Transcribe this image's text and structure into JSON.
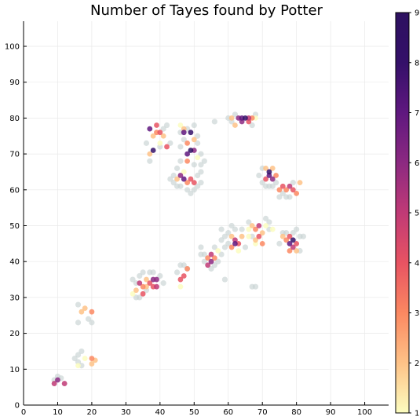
{
  "chart_data": {
    "type": "scatter",
    "title": "Number of Tayes found by Potter",
    "xlabel": "",
    "ylabel": "",
    "xlim": [
      0,
      107
    ],
    "ylim": [
      0,
      107
    ],
    "x_ticks": [
      0,
      10,
      20,
      30,
      40,
      50,
      60,
      70,
      80,
      90,
      100
    ],
    "y_ticks": [
      0,
      10,
      20,
      30,
      40,
      50,
      60,
      70,
      80,
      90,
      100
    ],
    "grid": true,
    "legend": "none",
    "colorbar": {
      "position": "right",
      "min": 1,
      "max": 9,
      "ticks": [
        1,
        2,
        3,
        4,
        5,
        6,
        7,
        8,
        9
      ],
      "colormap": [
        "#fcfdbf",
        "#fec287",
        "#fb8861",
        "#e85362",
        "#c03a76",
        "#8c2981",
        "#5f187f",
        "#341069",
        "#2d1160"
      ]
    },
    "zero_color": "#c8d3d3",
    "points": [
      {
        "x": 9,
        "y": 6,
        "v": 5
      },
      {
        "x": 10,
        "y": 7,
        "v": 6
      },
      {
        "x": 12,
        "y": 6,
        "v": 5
      },
      {
        "x": 10,
        "y": 8,
        "v": 0
      },
      {
        "x": 9,
        "y": 7,
        "v": 0
      },
      {
        "x": 11,
        "y": 7.5,
        "v": 0
      },
      {
        "x": 16,
        "y": 14,
        "v": 0
      },
      {
        "x": 17,
        "y": 15,
        "v": 0
      },
      {
        "x": 16,
        "y": 12,
        "v": 0
      },
      {
        "x": 17,
        "y": 11,
        "v": 0
      },
      {
        "x": 18,
        "y": 13,
        "v": 1
      },
      {
        "x": 16,
        "y": 11,
        "v": 1
      },
      {
        "x": 20,
        "y": 13,
        "v": 3
      },
      {
        "x": 21,
        "y": 12.5,
        "v": 2
      },
      {
        "x": 20,
        "y": 11.5,
        "v": 2
      },
      {
        "x": 15,
        "y": 13,
        "v": 0
      },
      {
        "x": 16,
        "y": 28,
        "v": 0
      },
      {
        "x": 16,
        "y": 23,
        "v": 0
      },
      {
        "x": 19,
        "y": 24,
        "v": 0
      },
      {
        "x": 20,
        "y": 23,
        "v": 0
      },
      {
        "x": 17,
        "y": 26,
        "v": 2
      },
      {
        "x": 18,
        "y": 27,
        "v": 2
      },
      {
        "x": 20,
        "y": 26,
        "v": 3
      },
      {
        "x": 32,
        "y": 31,
        "v": 1
      },
      {
        "x": 33,
        "y": 32,
        "v": 2
      },
      {
        "x": 34,
        "y": 30,
        "v": 0
      },
      {
        "x": 35,
        "y": 31,
        "v": 4
      },
      {
        "x": 34,
        "y": 34,
        "v": 5
      },
      {
        "x": 35,
        "y": 33,
        "v": 3
      },
      {
        "x": 36,
        "y": 35,
        "v": 2
      },
      {
        "x": 37,
        "y": 34,
        "v": 4
      },
      {
        "x": 38,
        "y": 35,
        "v": 6
      },
      {
        "x": 39,
        "y": 33,
        "v": 5
      },
      {
        "x": 38,
        "y": 33,
        "v": 4
      },
      {
        "x": 39,
        "y": 35,
        "v": 6
      },
      {
        "x": 33,
        "y": 34,
        "v": 0
      },
      {
        "x": 35,
        "y": 37,
        "v": 0
      },
      {
        "x": 37,
        "y": 37,
        "v": 0
      },
      {
        "x": 32,
        "y": 35,
        "v": 0
      },
      {
        "x": 36,
        "y": 32,
        "v": 0
      },
      {
        "x": 40,
        "y": 36,
        "v": 0
      },
      {
        "x": 41,
        "y": 34,
        "v": 0
      },
      {
        "x": 34,
        "y": 36,
        "v": 0
      },
      {
        "x": 38,
        "y": 37,
        "v": 0
      },
      {
        "x": 36,
        "y": 33,
        "v": 2
      },
      {
        "x": 33,
        "y": 30,
        "v": 0
      },
      {
        "x": 46,
        "y": 39,
        "v": 0
      },
      {
        "x": 47,
        "y": 39,
        "v": 0
      },
      {
        "x": 48,
        "y": 38,
        "v": 0
      },
      {
        "x": 45,
        "y": 37,
        "v": 0
      },
      {
        "x": 47,
        "y": 36,
        "v": 4
      },
      {
        "x": 46,
        "y": 35,
        "v": 4
      },
      {
        "x": 48,
        "y": 38,
        "v": 3
      },
      {
        "x": 46,
        "y": 33,
        "v": 1
      },
      {
        "x": 37,
        "y": 77,
        "v": 7
      },
      {
        "x": 38,
        "y": 71,
        "v": 8
      },
      {
        "x": 37,
        "y": 70,
        "v": 2
      },
      {
        "x": 39,
        "y": 78,
        "v": 4
      },
      {
        "x": 40,
        "y": 76,
        "v": 4
      },
      {
        "x": 39,
        "y": 76,
        "v": 3
      },
      {
        "x": 41,
        "y": 75,
        "v": 2
      },
      {
        "x": 42,
        "y": 72,
        "v": 4
      },
      {
        "x": 40,
        "y": 73,
        "v": 1
      },
      {
        "x": 38,
        "y": 75,
        "v": 2
      },
      {
        "x": 42,
        "y": 78,
        "v": 0
      },
      {
        "x": 41,
        "y": 77,
        "v": 0
      },
      {
        "x": 40,
        "y": 72,
        "v": 0
      },
      {
        "x": 43,
        "y": 73,
        "v": 0
      },
      {
        "x": 37,
        "y": 68,
        "v": 0
      },
      {
        "x": 36,
        "y": 73,
        "v": 0
      },
      {
        "x": 46,
        "y": 78,
        "v": 1
      },
      {
        "x": 47,
        "y": 77,
        "v": 2
      },
      {
        "x": 47,
        "y": 76,
        "v": 7
      },
      {
        "x": 49,
        "y": 76,
        "v": 8
      },
      {
        "x": 49,
        "y": 71,
        "v": 9
      },
      {
        "x": 48,
        "y": 70,
        "v": 7
      },
      {
        "x": 50,
        "y": 71,
        "v": 6
      },
      {
        "x": 48,
        "y": 73,
        "v": 3
      },
      {
        "x": 50,
        "y": 74,
        "v": 2
      },
      {
        "x": 48,
        "y": 68,
        "v": 3
      },
      {
        "x": 51,
        "y": 69,
        "v": 1
      },
      {
        "x": 46,
        "y": 72,
        "v": 0
      },
      {
        "x": 47,
        "y": 74,
        "v": 0
      },
      {
        "x": 51,
        "y": 73,
        "v": 0
      },
      {
        "x": 52,
        "y": 70,
        "v": 0
      },
      {
        "x": 52,
        "y": 67,
        "v": 0
      },
      {
        "x": 53,
        "y": 68,
        "v": 0
      },
      {
        "x": 50,
        "y": 67,
        "v": 0
      },
      {
        "x": 46,
        "y": 76,
        "v": 0
      },
      {
        "x": 50,
        "y": 78,
        "v": 0
      },
      {
        "x": 48,
        "y": 77,
        "v": 0
      },
      {
        "x": 52,
        "y": 65,
        "v": 0
      },
      {
        "x": 51,
        "y": 75,
        "v": 0
      },
      {
        "x": 44,
        "y": 64,
        "v": 0
      },
      {
        "x": 45,
        "y": 63,
        "v": 2
      },
      {
        "x": 46,
        "y": 64,
        "v": 6
      },
      {
        "x": 47,
        "y": 63,
        "v": 7
      },
      {
        "x": 48,
        "y": 62,
        "v": 3
      },
      {
        "x": 49,
        "y": 63,
        "v": 4
      },
      {
        "x": 50,
        "y": 62,
        "v": 4
      },
      {
        "x": 47,
        "y": 65,
        "v": 1
      },
      {
        "x": 46,
        "y": 61,
        "v": 0
      },
      {
        "x": 48,
        "y": 60,
        "v": 0
      },
      {
        "x": 50,
        "y": 60,
        "v": 0
      },
      {
        "x": 49,
        "y": 59,
        "v": 0
      },
      {
        "x": 45,
        "y": 61,
        "v": 0
      },
      {
        "x": 44,
        "y": 62,
        "v": 0
      },
      {
        "x": 51,
        "y": 61,
        "v": 0
      },
      {
        "x": 51,
        "y": 64,
        "v": 0
      },
      {
        "x": 52,
        "y": 62,
        "v": 0
      },
      {
        "x": 45,
        "y": 66,
        "v": 0
      },
      {
        "x": 43,
        "y": 63,
        "v": 0
      },
      {
        "x": 46,
        "y": 68,
        "v": 0
      },
      {
        "x": 61,
        "y": 80,
        "v": 2
      },
      {
        "x": 62,
        "y": 78,
        "v": 2
      },
      {
        "x": 63,
        "y": 80,
        "v": 6
      },
      {
        "x": 64,
        "y": 80,
        "v": 7
      },
      {
        "x": 65,
        "y": 80,
        "v": 8
      },
      {
        "x": 64,
        "y": 79,
        "v": 6
      },
      {
        "x": 66,
        "y": 79,
        "v": 4
      },
      {
        "x": 66,
        "y": 80,
        "v": 5
      },
      {
        "x": 67,
        "y": 80,
        "v": 3
      },
      {
        "x": 68,
        "y": 80,
        "v": 1
      },
      {
        "x": 61,
        "y": 79,
        "v": 0
      },
      {
        "x": 62,
        "y": 81,
        "v": 0
      },
      {
        "x": 67,
        "y": 78,
        "v": 0
      },
      {
        "x": 68,
        "y": 81,
        "v": 0
      },
      {
        "x": 60,
        "y": 80,
        "v": 0
      },
      {
        "x": 56,
        "y": 79,
        "v": 0
      },
      {
        "x": 70,
        "y": 62,
        "v": 0
      },
      {
        "x": 71,
        "y": 61,
        "v": 0
      },
      {
        "x": 71,
        "y": 63,
        "v": 4
      },
      {
        "x": 72,
        "y": 64,
        "v": 7
      },
      {
        "x": 72,
        "y": 65,
        "v": 8
      },
      {
        "x": 73,
        "y": 63,
        "v": 6
      },
      {
        "x": 71,
        "y": 66,
        "v": 2
      },
      {
        "x": 73,
        "y": 66,
        "v": 2
      },
      {
        "x": 74,
        "y": 64,
        "v": 3
      },
      {
        "x": 74,
        "y": 62,
        "v": 0
      },
      {
        "x": 70,
        "y": 66,
        "v": 0
      },
      {
        "x": 72,
        "y": 61,
        "v": 0
      },
      {
        "x": 73,
        "y": 61,
        "v": 0
      },
      {
        "x": 69,
        "y": 64,
        "v": 0
      },
      {
        "x": 75,
        "y": 60,
        "v": 3
      },
      {
        "x": 76,
        "y": 61,
        "v": 4
      },
      {
        "x": 77,
        "y": 60,
        "v": 3
      },
      {
        "x": 78,
        "y": 61,
        "v": 5
      },
      {
        "x": 79,
        "y": 60,
        "v": 4
      },
      {
        "x": 80,
        "y": 59,
        "v": 3
      },
      {
        "x": 81,
        "y": 62,
        "v": 2
      },
      {
        "x": 76,
        "y": 59,
        "v": 0
      },
      {
        "x": 78,
        "y": 58,
        "v": 0
      },
      {
        "x": 77,
        "y": 58,
        "v": 0
      },
      {
        "x": 79,
        "y": 62,
        "v": 0
      },
      {
        "x": 75,
        "y": 58,
        "v": 0
      },
      {
        "x": 58,
        "y": 49,
        "v": 0
      },
      {
        "x": 59,
        "y": 47,
        "v": 0
      },
      {
        "x": 60,
        "y": 48,
        "v": 0
      },
      {
        "x": 61,
        "y": 47,
        "v": 2
      },
      {
        "x": 62,
        "y": 46,
        "v": 5
      },
      {
        "x": 62,
        "y": 45,
        "v": 7
      },
      {
        "x": 63,
        "y": 45,
        "v": 4
      },
      {
        "x": 61,
        "y": 44,
        "v": 3
      },
      {
        "x": 64,
        "y": 47,
        "v": 2
      },
      {
        "x": 63,
        "y": 43,
        "v": 1
      },
      {
        "x": 65,
        "y": 44,
        "v": 0
      },
      {
        "x": 60,
        "y": 45,
        "v": 0
      },
      {
        "x": 59,
        "y": 44,
        "v": 0
      },
      {
        "x": 64,
        "y": 49,
        "v": 0
      },
      {
        "x": 62,
        "y": 49,
        "v": 0
      },
      {
        "x": 66,
        "y": 47,
        "v": 1
      },
      {
        "x": 58,
        "y": 46,
        "v": 0
      },
      {
        "x": 61,
        "y": 50,
        "v": 0
      },
      {
        "x": 66,
        "y": 49,
        "v": 1
      },
      {
        "x": 67,
        "y": 50,
        "v": 2
      },
      {
        "x": 68,
        "y": 49,
        "v": 3
      },
      {
        "x": 69,
        "y": 50,
        "v": 5
      },
      {
        "x": 69,
        "y": 47,
        "v": 4
      },
      {
        "x": 70,
        "y": 48,
        "v": 2
      },
      {
        "x": 68,
        "y": 46,
        "v": 2
      },
      {
        "x": 70,
        "y": 45,
        "v": 3
      },
      {
        "x": 71,
        "y": 50,
        "v": 1
      },
      {
        "x": 72,
        "y": 49,
        "v": 0
      },
      {
        "x": 71,
        "y": 52,
        "v": 0
      },
      {
        "x": 72,
        "y": 51,
        "v": 0
      },
      {
        "x": 67,
        "y": 47,
        "v": 0
      },
      {
        "x": 66,
        "y": 51,
        "v": 0
      },
      {
        "x": 73,
        "y": 49,
        "v": 1
      },
      {
        "x": 68,
        "y": 45,
        "v": 1
      },
      {
        "x": 76,
        "y": 47,
        "v": 2
      },
      {
        "x": 77,
        "y": 46,
        "v": 3
      },
      {
        "x": 78,
        "y": 47,
        "v": 4
      },
      {
        "x": 78,
        "y": 45,
        "v": 7
      },
      {
        "x": 79,
        "y": 46,
        "v": 8
      },
      {
        "x": 79,
        "y": 44,
        "v": 5
      },
      {
        "x": 80,
        "y": 45,
        "v": 4
      },
      {
        "x": 78,
        "y": 43,
        "v": 3
      },
      {
        "x": 80,
        "y": 43,
        "v": 2
      },
      {
        "x": 77,
        "y": 48,
        "v": 0
      },
      {
        "x": 76,
        "y": 48,
        "v": 0
      },
      {
        "x": 79,
        "y": 48,
        "v": 0
      },
      {
        "x": 81,
        "y": 47,
        "v": 0
      },
      {
        "x": 82,
        "y": 47,
        "v": 0
      },
      {
        "x": 80,
        "y": 49,
        "v": 0
      },
      {
        "x": 81,
        "y": 43,
        "v": 0
      },
      {
        "x": 75,
        "y": 45,
        "v": 0
      },
      {
        "x": 52,
        "y": 44,
        "v": 0
      },
      {
        "x": 53,
        "y": 42,
        "v": 0
      },
      {
        "x": 54,
        "y": 41,
        "v": 3
      },
      {
        "x": 55,
        "y": 40,
        "v": 6
      },
      {
        "x": 55,
        "y": 42,
        "v": 5
      },
      {
        "x": 54,
        "y": 39,
        "v": 5
      },
      {
        "x": 56,
        "y": 41,
        "v": 3
      },
      {
        "x": 57,
        "y": 43,
        "v": 1
      },
      {
        "x": 56,
        "y": 39,
        "v": 0
      },
      {
        "x": 57,
        "y": 40,
        "v": 0
      },
      {
        "x": 53,
        "y": 40,
        "v": 0
      },
      {
        "x": 52,
        "y": 42,
        "v": 0
      },
      {
        "x": 58,
        "y": 42,
        "v": 0
      },
      {
        "x": 55,
        "y": 38,
        "v": 0
      },
      {
        "x": 56,
        "y": 44,
        "v": 0
      },
      {
        "x": 59,
        "y": 35,
        "v": 0
      },
      {
        "x": 67,
        "y": 33,
        "v": 0
      },
      {
        "x": 68,
        "y": 33,
        "v": 0
      }
    ]
  }
}
